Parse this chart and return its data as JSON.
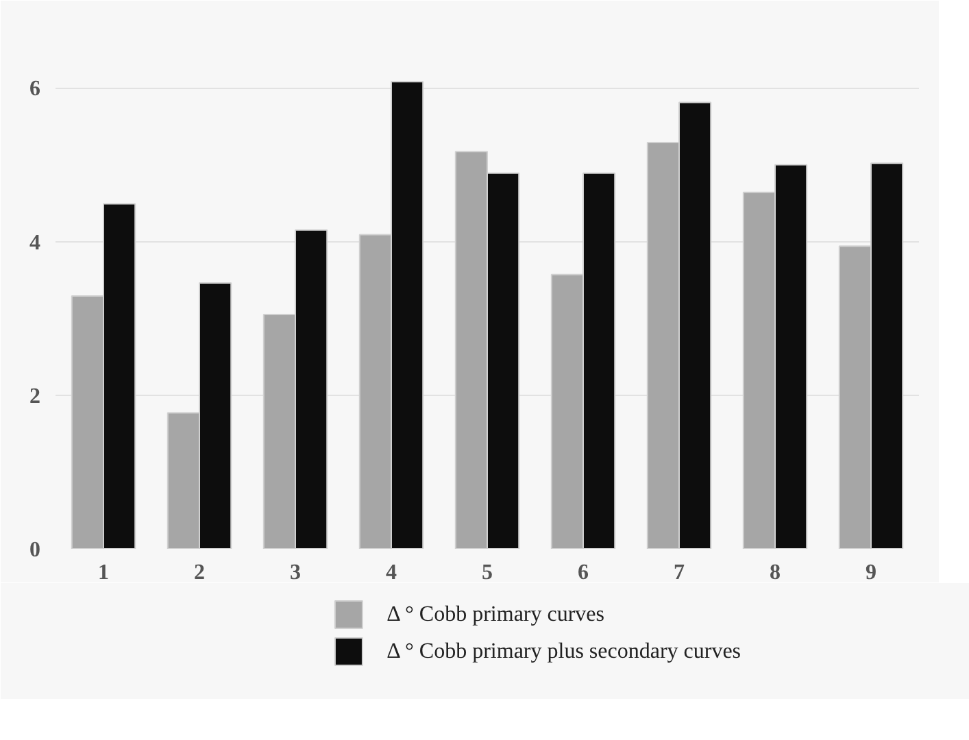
{
  "chart_data": {
    "type": "bar",
    "categories": [
      "1",
      "2",
      "3",
      "4",
      "5",
      "6",
      "7",
      "8",
      "9"
    ],
    "series": [
      {
        "name": "Δ ° Cobb primary curves",
        "color": "#a6a6a6",
        "values": [
          3.29,
          1.77,
          3.05,
          4.09,
          5.17,
          3.57,
          5.29,
          4.64,
          3.94
        ]
      },
      {
        "name": "Δ ° Cobb primary plus secondary curves",
        "color": "#0d0d0d",
        "values": [
          4.49,
          3.46,
          4.15,
          6.08,
          4.89,
          4.89,
          5.81,
          5.0,
          5.02
        ]
      }
    ],
    "ylim": [
      0,
      6.6
    ],
    "yticks": [
      0,
      2,
      4,
      6
    ],
    "grid": "y",
    "legend": "bottom"
  }
}
